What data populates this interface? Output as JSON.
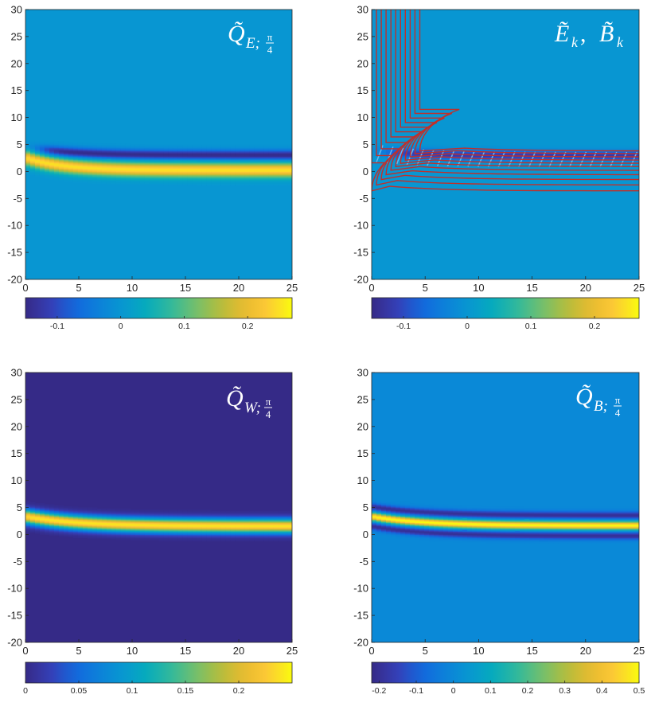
{
  "chart_data": [
    {
      "type": "heatmap",
      "panel": "top-left",
      "label": {
        "main": "Q̃",
        "sub": "E;",
        "frac_num": "π",
        "frac_den": "4"
      },
      "x": {
        "ticks": [
          0,
          5,
          10,
          15,
          20,
          25
        ],
        "labels": [
          "0",
          "5",
          "10",
          "15",
          "20",
          "25"
        ],
        "range": [
          0,
          25
        ]
      },
      "y": {
        "ticks": [
          -20,
          -15,
          -10,
          -5,
          0,
          5,
          10,
          15,
          20,
          25,
          30
        ],
        "labels": [
          "-20",
          "-15",
          "-10",
          "-5",
          "0",
          "5",
          "10",
          "15",
          "20",
          "25",
          "30"
        ],
        "range": [
          -20,
          30
        ]
      },
      "colorbar": {
        "range": [
          -0.15,
          0.27
        ],
        "ticks": [
          -0.1,
          0,
          0.1,
          0.2
        ],
        "labels": [
          "-0.1",
          "0",
          "0.1",
          "0.2"
        ]
      },
      "background": 0.0,
      "features": [
        {
          "name": "negative-band",
          "y0": 4.6,
          "yInf": 3.1,
          "decay": 4,
          "width": 0.9,
          "amp": -0.15,
          "xstart": 1.5
        },
        {
          "name": "positive-band",
          "y0": 2.6,
          "yInf": 0.3,
          "decay": 3.5,
          "width": 1.3,
          "amp": 0.25,
          "xstart": -2
        }
      ]
    },
    {
      "type": "heatmap",
      "panel": "top-right",
      "label": {
        "main": "Ẽ",
        "sub": "k",
        "sep": ", ",
        "main2": "B̃",
        "sub2": "k"
      },
      "x": {
        "ticks": [
          0,
          5,
          10,
          15,
          20,
          25
        ],
        "labels": [
          "0",
          "5",
          "10",
          "15",
          "20",
          "25"
        ],
        "range": [
          0,
          25
        ]
      },
      "y": {
        "ticks": [
          -20,
          -15,
          -10,
          -5,
          0,
          5,
          10,
          15,
          20,
          25,
          30
        ],
        "labels": [
          "-20",
          "-15",
          "-10",
          "-5",
          "0",
          "5",
          "10",
          "15",
          "20",
          "25",
          "30"
        ],
        "range": [
          -20,
          30
        ]
      },
      "colorbar": {
        "range": [
          -0.15,
          0.27
        ],
        "ticks": [
          -0.1,
          0,
          0.1,
          0.2
        ],
        "labels": [
          "-0.1",
          "0",
          "0.1",
          "0.2"
        ]
      },
      "background": 0.0,
      "features": [
        {
          "name": "negative-band",
          "y0": 4.0,
          "yInf": 3.0,
          "decay": 4,
          "width": 0.9,
          "amp": -0.12,
          "xstart": 1.5
        }
      ],
      "field_lines": {
        "color": "#c0302a",
        "vertical_x": [
          0.0,
          0.45,
          0.9,
          1.35,
          1.8,
          2.25,
          2.7,
          3.15,
          3.6,
          4.05,
          4.5
        ],
        "asymptote_y": [
          -3.6,
          -2.5,
          -1.5,
          -0.6,
          0.2,
          0.9,
          1.5,
          2.1,
          2.7,
          3.3,
          3.8
        ]
      },
      "hatch": {
        "color": "#6ab8ee",
        "x_start": 1.0,
        "x_end": 25,
        "step": 0.95
      }
    },
    {
      "type": "heatmap",
      "panel": "bottom-left",
      "label": {
        "main": "Q̃",
        "sub": "W;",
        "frac_num": "π",
        "frac_den": "4"
      },
      "x": {
        "ticks": [
          0,
          5,
          10,
          15,
          20,
          25
        ],
        "labels": [
          "0",
          "5",
          "10",
          "15",
          "20",
          "25"
        ],
        "range": [
          0,
          25
        ]
      },
      "y": {
        "ticks": [
          -20,
          -15,
          -10,
          -5,
          0,
          5,
          10,
          15,
          20,
          25,
          30
        ],
        "labels": [
          "-20",
          "-15",
          "-10",
          "-5",
          "0",
          "5",
          "10",
          "15",
          "20",
          "25",
          "30"
        ],
        "range": [
          -20,
          30
        ]
      },
      "colorbar": {
        "range": [
          0,
          0.25
        ],
        "ticks": [
          0,
          0.05,
          0.1,
          0.15,
          0.2
        ],
        "labels": [
          "0",
          "0.05",
          "0.1",
          "0.15",
          "0.2"
        ]
      },
      "background": 0.0,
      "features": [
        {
          "name": "positive-band",
          "y0": 3.4,
          "yInf": 1.6,
          "decay": 5,
          "width": 1.3,
          "amp": 0.24,
          "xstart": -2
        }
      ]
    },
    {
      "type": "heatmap",
      "panel": "bottom-right",
      "label": {
        "main": "Q̃",
        "sub": "B;",
        "frac_num": "π",
        "frac_den": "4"
      },
      "x": {
        "ticks": [
          0,
          5,
          10,
          15,
          20,
          25
        ],
        "labels": [
          "0",
          "5",
          "10",
          "15",
          "20",
          "25"
        ],
        "range": [
          0,
          25
        ]
      },
      "y": {
        "ticks": [
          -20,
          -15,
          -10,
          -5,
          0,
          5,
          10,
          15,
          20,
          25,
          30
        ],
        "labels": [
          "-20",
          "-15",
          "-10",
          "-5",
          "0",
          "5",
          "10",
          "15",
          "20",
          "25",
          "30"
        ],
        "range": [
          -20,
          30
        ]
      },
      "colorbar": {
        "range": [
          -0.22,
          0.5
        ],
        "ticks": [
          -0.2,
          -0.1,
          0,
          0.1,
          0.2,
          0.3,
          0.4,
          0.5
        ],
        "labels": [
          "-0.2",
          "-0.1",
          "0",
          "0.1",
          "0.2",
          "0.3",
          "0.4",
          "0.5"
        ]
      },
      "background": 0.0,
      "features": [
        {
          "name": "upper-negative-band",
          "y0": 5.2,
          "yInf": 3.6,
          "decay": 5,
          "width": 0.7,
          "amp": -0.2,
          "xstart": -2
        },
        {
          "name": "center-positive-band",
          "y0": 3.4,
          "yInf": 1.7,
          "decay": 5,
          "width": 0.75,
          "amp": 0.5,
          "xstart": -2
        },
        {
          "name": "lower-negative-band",
          "y0": 1.6,
          "yInf": -0.2,
          "decay": 5,
          "width": 0.7,
          "amp": -0.2,
          "xstart": -2
        }
      ]
    }
  ]
}
